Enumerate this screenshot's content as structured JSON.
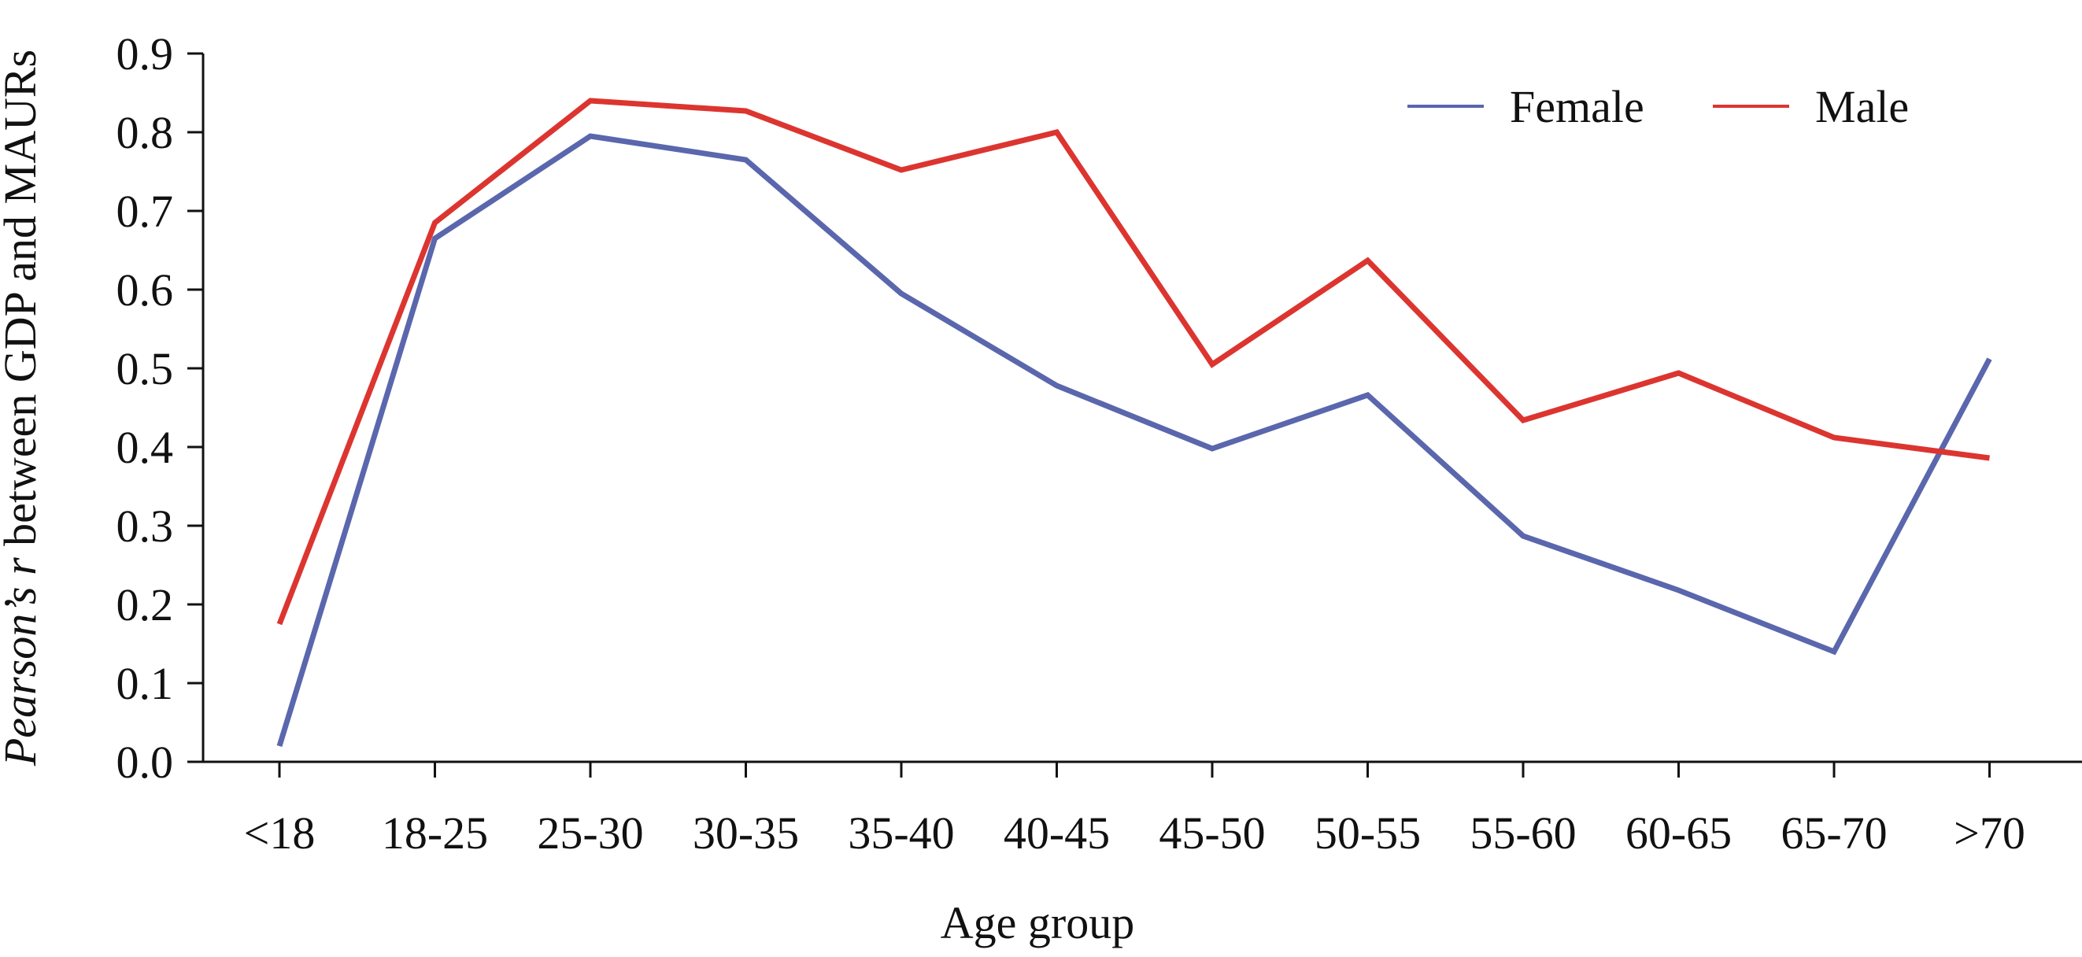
{
  "chart_data": {
    "type": "line",
    "categories": [
      "<18",
      "18-25",
      "25-30",
      "30-35",
      "35-40",
      "40-45",
      "45-50",
      "50-55",
      "55-60",
      "60-65",
      "65-70",
      ">70"
    ],
    "series": [
      {
        "name": "Female",
        "color": "#5a67ad",
        "values": [
          0.02,
          0.665,
          0.795,
          0.765,
          0.595,
          0.478,
          0.398,
          0.466,
          0.287,
          0.218,
          0.14,
          0.512
        ]
      },
      {
        "name": "Male",
        "color": "#dc3530",
        "values": [
          0.175,
          0.685,
          0.84,
          0.827,
          0.752,
          0.8,
          0.505,
          0.637,
          0.434,
          0.494,
          0.412,
          0.386
        ]
      }
    ],
    "yticks": [
      "0.0",
      "0.1",
      "0.2",
      "0.3",
      "0.4",
      "0.5",
      "0.6",
      "0.7",
      "0.8",
      "0.9"
    ],
    "ylim": [
      0,
      0.9
    ],
    "xlabel": "Age group",
    "ylabel_italic": "Pearson’s r",
    "ylabel_rest": " between GDP and MAURs",
    "legend_position": "top-right",
    "grid": false
  }
}
